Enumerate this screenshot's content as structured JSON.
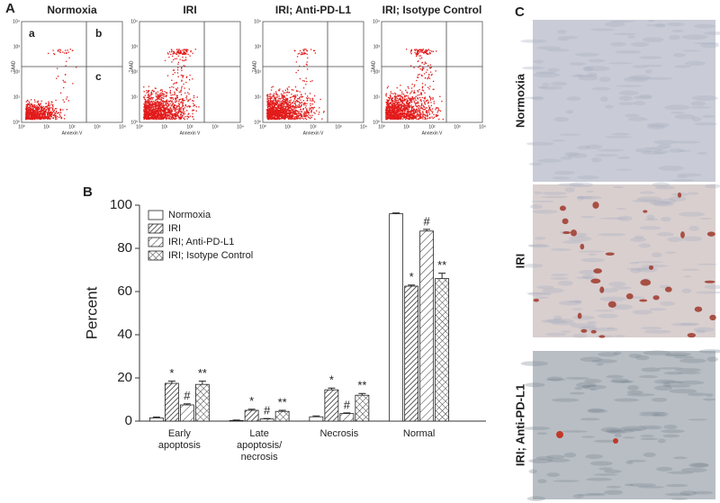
{
  "panel_labels": [
    "A",
    "B",
    "C"
  ],
  "flow_panels": [
    {
      "title": "Normoxia",
      "quadrants": [
        "a",
        "b",
        "c"
      ]
    },
    {
      "title": "IRI"
    },
    {
      "title": "IRI; Anti-PD-L1"
    },
    {
      "title": "IRI; Isotype Control"
    }
  ],
  "flow_axes": {
    "x_label": "Annexin V",
    "y_label": "7AAD",
    "ticks": [
      "10⁰",
      "10¹",
      "10²",
      "10³",
      "10⁴"
    ]
  },
  "histology_labels": [
    "Normoxia",
    "IRI",
    "IRI; Anti-PD-L1"
  ],
  "chart_data": {
    "type": "bar",
    "ylabel": "Percent",
    "categories": [
      "Early\napoptosis",
      "Late\napoptosis/\nnecrosis",
      "Necrosis",
      "Normal"
    ],
    "series": [
      {
        "name": "Normoxia",
        "color": "#ffffff",
        "pattern": "none",
        "values": [
          1.5,
          0.3,
          2,
          96
        ],
        "errors": [
          0.4,
          0.2,
          0.4,
          0.4
        ]
      },
      {
        "name": "IRI",
        "color": "#ffffff",
        "pattern": "diagonal",
        "values": [
          17.5,
          5,
          14.5,
          62.5
        ],
        "errors": [
          1,
          0.5,
          0.8,
          0.5
        ],
        "annotations": [
          "*",
          "*",
          "*",
          "*"
        ]
      },
      {
        "name": "IRI; Anti-PD-L1",
        "color": "#ffffff",
        "pattern": "diagonal-wide",
        "values": [
          7.5,
          1,
          3.5,
          88
        ],
        "errors": [
          0.5,
          0.2,
          0.3,
          0.8
        ],
        "annotations": [
          "#",
          "#",
          "#",
          "#"
        ]
      },
      {
        "name": "IRI; Isotype Control",
        "color": "#ffffff",
        "pattern": "crosshatch",
        "values": [
          17,
          4.5,
          12,
          66
        ],
        "errors": [
          1.5,
          0.5,
          0.8,
          2.5
        ],
        "annotations": [
          "**",
          "**",
          "**",
          "**"
        ]
      }
    ],
    "ylim": [
      0,
      100
    ],
    "yticks": [
      0,
      20,
      40,
      60,
      80,
      100
    ],
    "legend": "upper left"
  }
}
